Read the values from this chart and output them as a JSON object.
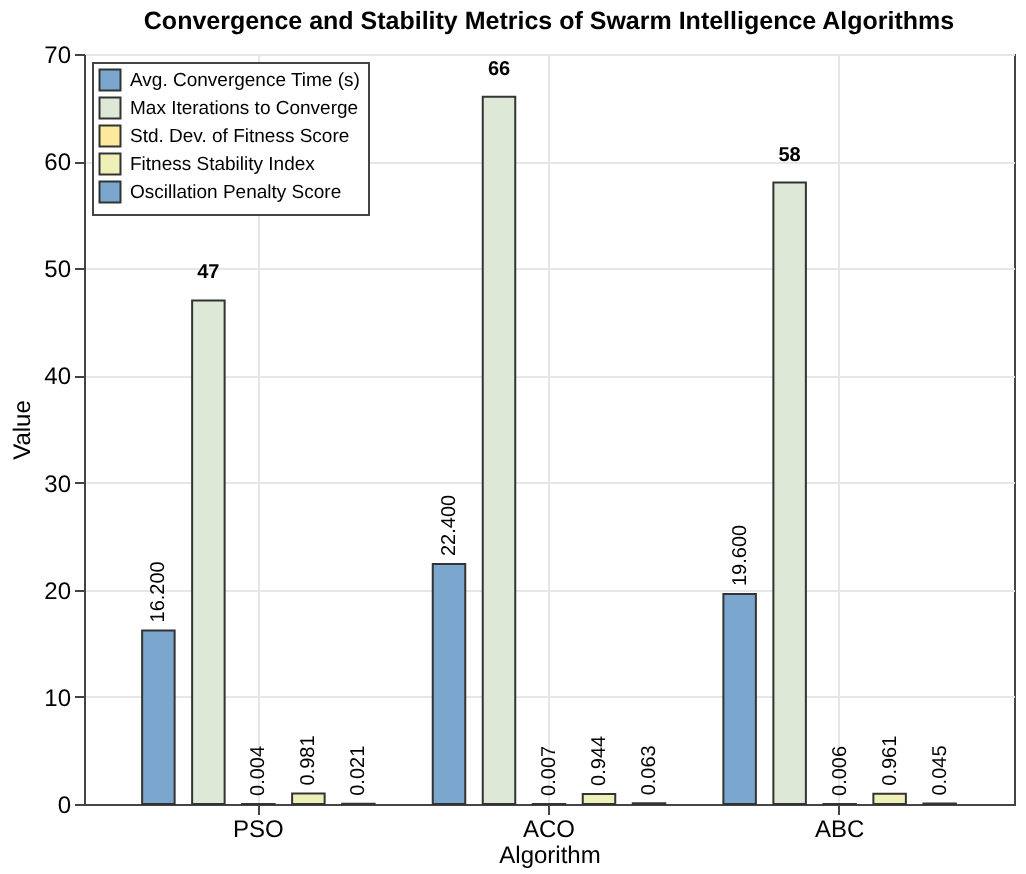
{
  "chart_data": {
    "type": "bar",
    "title": "Convergence and Stability Metrics of Swarm Intelligence Algorithms",
    "xlabel": "Algorithm",
    "ylabel": "Value",
    "categories": [
      "PSO",
      "ACO",
      "ABC"
    ],
    "series": [
      {
        "name": "Avg. Convergence Time (s)",
        "color": "#7ba6cd",
        "values": [
          16.2,
          22.4,
          19.6
        ],
        "value_labels": [
          "16.200",
          "22.400",
          "19.600"
        ]
      },
      {
        "name": "Max Iterations to Converge",
        "color": "#dde8d6",
        "values": [
          47,
          66,
          58
        ],
        "value_labels": [
          "47",
          "66",
          "58"
        ]
      },
      {
        "name": "Std. Dev. of Fitness Score",
        "color": "#fde99b",
        "values": [
          0.004,
          0.007,
          0.006
        ],
        "value_labels": [
          "0.004",
          "0.007",
          "0.006"
        ]
      },
      {
        "name": "Fitness Stability Index",
        "color": "#eef0b8",
        "values": [
          0.981,
          0.944,
          0.961
        ],
        "value_labels": [
          "0.981",
          "0.944",
          "0.961"
        ]
      },
      {
        "name": "Oscillation Penalty Score",
        "color": "#7ba6cd",
        "values": [
          0.021,
          0.063,
          0.045
        ],
        "value_labels": [
          "0.021",
          "0.063",
          "0.045"
        ]
      }
    ],
    "ylim": [
      0,
      70
    ],
    "yticks": [
      0,
      10,
      20,
      30,
      40,
      50,
      60,
      70
    ],
    "grid": true,
    "legend": "top left"
  }
}
